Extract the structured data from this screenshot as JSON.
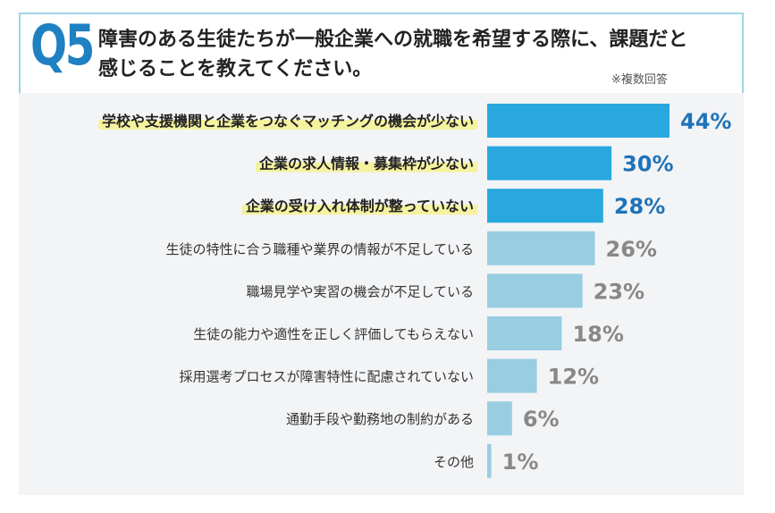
{
  "header": {
    "question_number": "Q5",
    "question_line1": "障害のある生徒たちが一般企業への就職を希望する際に、課題だと",
    "question_line2": "感じることを教えてください。",
    "note": "※複数回答"
  },
  "colors": {
    "accent": "#1f80c2",
    "bar_highlight": "#29a8df",
    "bar_normal": "#99cde2",
    "value_highlight": "#1f73b8",
    "value_normal": "#888888",
    "label_highlight_bg": "#f5f2a0",
    "panel_bg": "#f3f4f6",
    "frame": "#9ed6e6"
  },
  "chart_data": {
    "type": "bar",
    "orientation": "horizontal",
    "unit": "%",
    "categories": [
      "学校や支援機関と企業をつなぐマッチングの機会が少ない",
      "企業の求人情報・募集枠が少ない",
      "企業の受け入れ体制が整っていない",
      "生徒の特性に合う職種や業界の情報が不足している",
      "職場見学や実習の機会が不足している",
      "生徒の能力や適性を正しく評価してもらえない",
      "採用選考プロセスが障害特性に配慮されていない",
      "通勤手段や勤務地の制約がある",
      "その他"
    ],
    "values": [
      44,
      30,
      28,
      26,
      23,
      18,
      12,
      6,
      1
    ],
    "value_labels": [
      "44%",
      "30%",
      "28%",
      "26%",
      "23%",
      "18%",
      "12%",
      "6%",
      "1%"
    ],
    "highlighted": [
      true,
      true,
      true,
      false,
      false,
      false,
      false,
      false,
      false
    ],
    "xlim": [
      0,
      44
    ]
  }
}
